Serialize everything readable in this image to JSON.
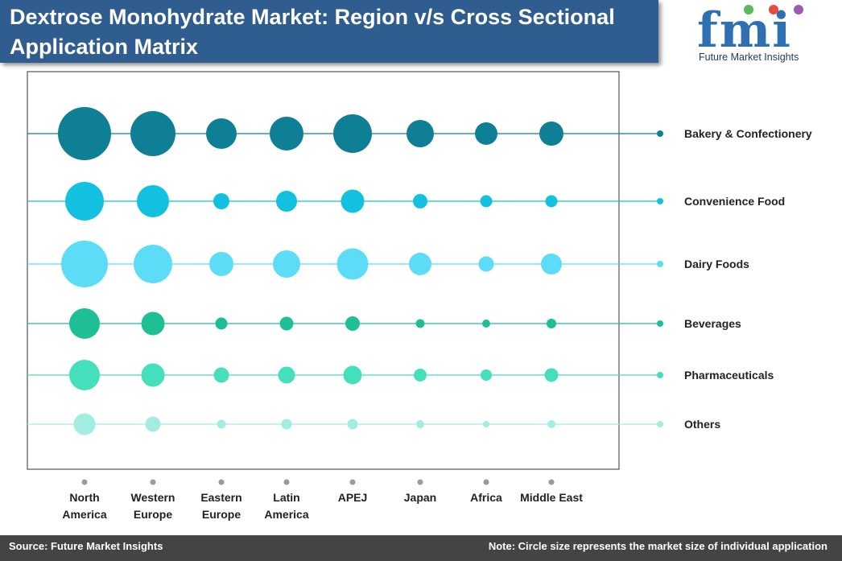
{
  "title": "Dextrose Monohydrate Market: Region v/s Cross Sectional Application Matrix",
  "logo": {
    "letters": "fmi",
    "subtitle": "Future Market Insights",
    "dot_colors": [
      "#5cb85c",
      "#e74c3c",
      "#9b59b6"
    ]
  },
  "footer": {
    "source": "Source: Future Market Insights",
    "note": "Note: Circle size represents the market size of individual application"
  },
  "chart_data": {
    "type": "scatter",
    "subtype": "bubble-matrix",
    "x_categories": [
      [
        "North",
        "America"
      ],
      [
        "Western",
        "Europe"
      ],
      [
        "Eastern",
        "Europe"
      ],
      [
        "Latin",
        "America"
      ],
      [
        "APEJ"
      ],
      [
        "Japan"
      ],
      [
        "Africa"
      ],
      [
        "Middle East"
      ]
    ],
    "series": [
      {
        "name": "Bakery & Confectionery",
        "color": "#0e7f94",
        "values": [
          33,
          28,
          19,
          21,
          24,
          17,
          14,
          15
        ]
      },
      {
        "name": "Convenience Food",
        "color": "#12c1e0",
        "values": [
          24,
          20,
          10,
          13,
          14.5,
          9,
          7.5,
          7.5
        ]
      },
      {
        "name": "Dairy Foods",
        "color": "#5ddcf8",
        "values": [
          29,
          24,
          15,
          17,
          19.5,
          14,
          9.5,
          13
        ]
      },
      {
        "name": "Beverages",
        "color": "#1fbf96",
        "values": [
          19,
          14.5,
          7.5,
          8.5,
          9,
          5.5,
          5,
          6
        ]
      },
      {
        "name": "Pharmaceuticals",
        "color": "#45dfbb",
        "values": [
          19,
          14.5,
          9.5,
          10.5,
          11.5,
          8,
          7,
          8.5
        ]
      },
      {
        "name": "Others",
        "color": "#a3ece0",
        "values": [
          13.5,
          9.5,
          5.5,
          6.5,
          6.5,
          5,
          4,
          5
        ]
      }
    ],
    "value_meaning": "relative market size (circle radius)",
    "grid": false
  }
}
